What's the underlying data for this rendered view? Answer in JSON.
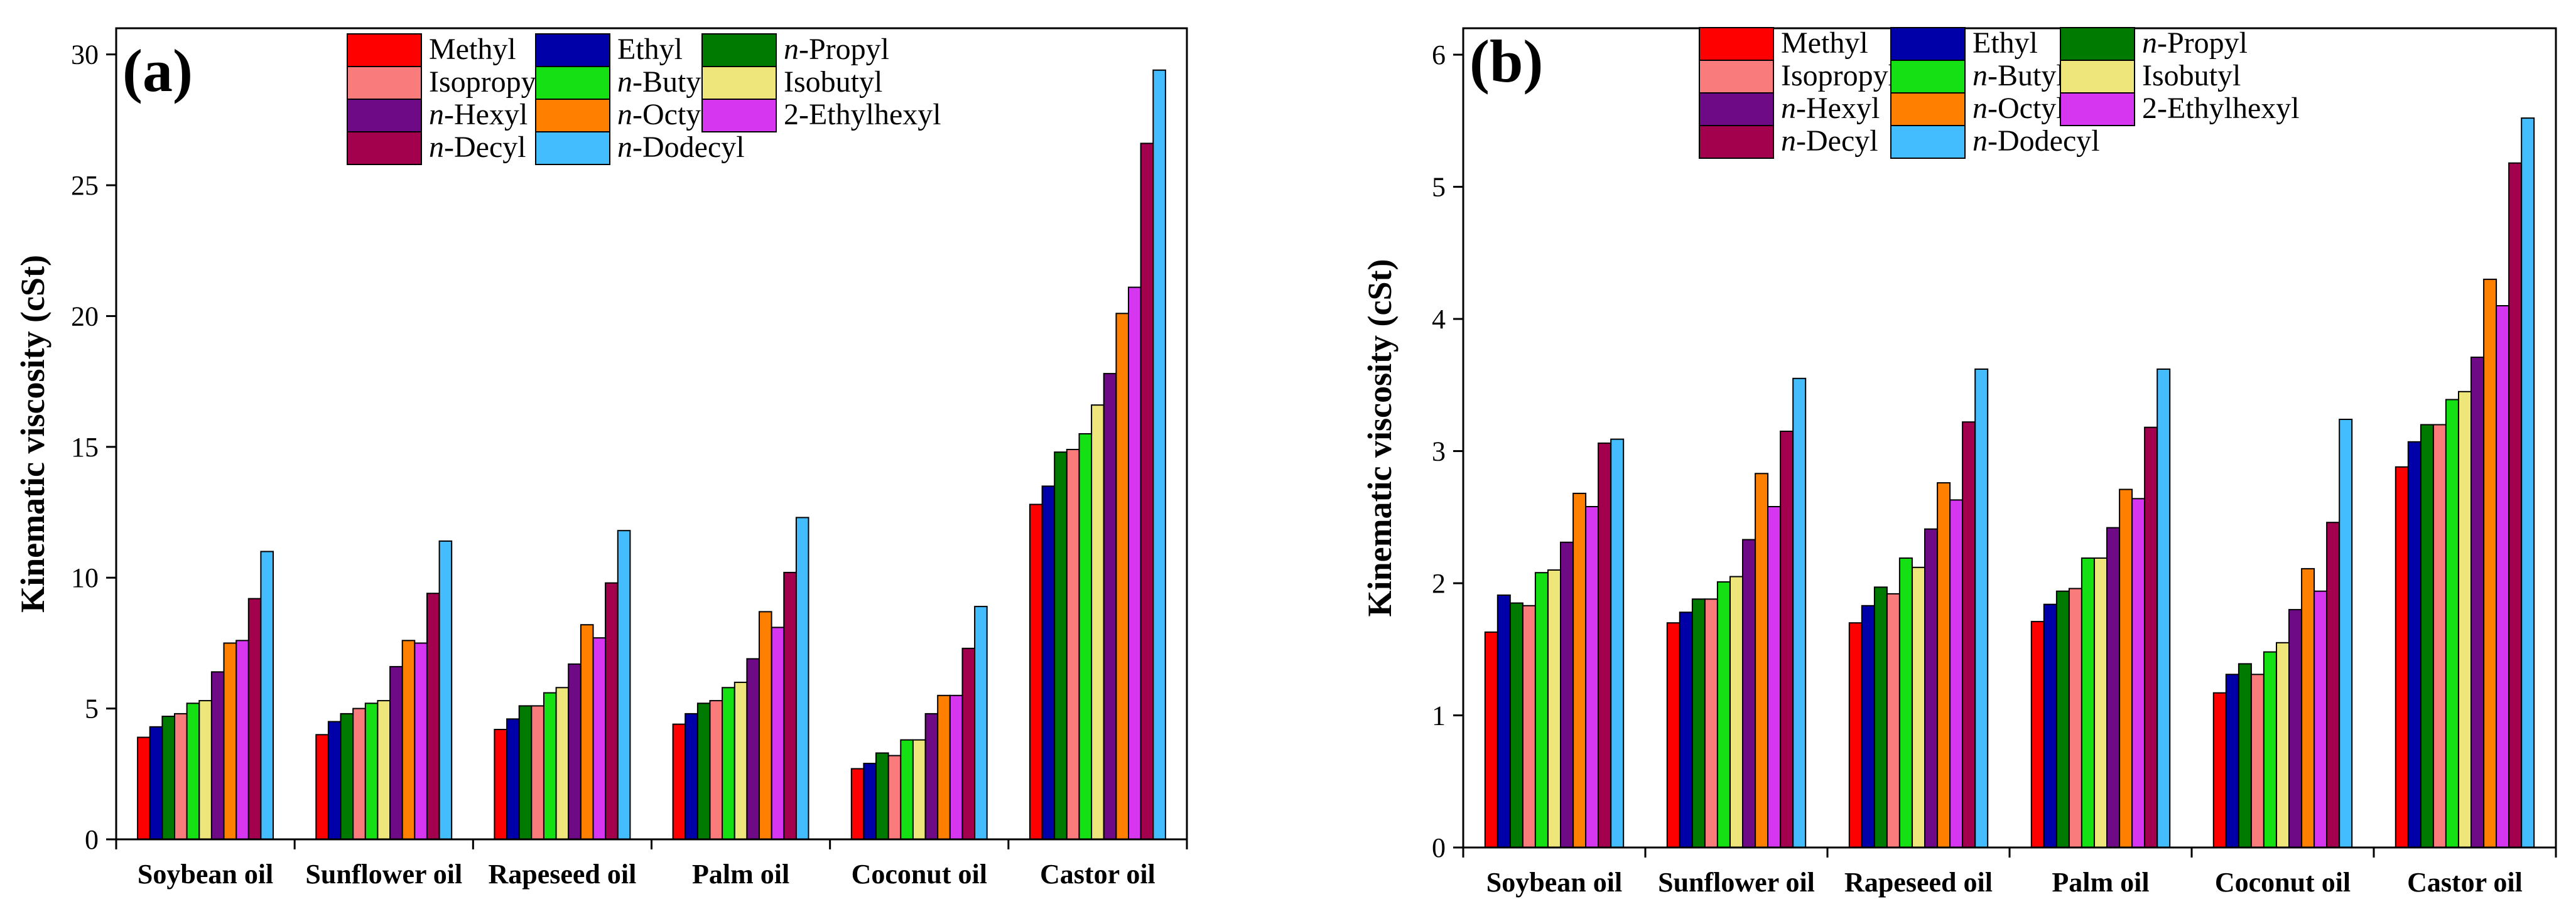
{
  "series": [
    {
      "key": "methyl",
      "prefix": "",
      "name": "Methyl",
      "color": "#ff0000"
    },
    {
      "key": "ethyl",
      "prefix": "",
      "name": "Ethyl",
      "color": "#0000a8"
    },
    {
      "key": "n-propyl",
      "prefix": "n",
      "name": "-Propyl",
      "color": "#007a00"
    },
    {
      "key": "isopropyl",
      "prefix": "",
      "name": "Isopropyl",
      "color": "#fa7b7b"
    },
    {
      "key": "n-butyl",
      "prefix": "n",
      "name": "-Butyl",
      "color": "#14e014"
    },
    {
      "key": "isobutyl",
      "prefix": "",
      "name": "Isobutyl",
      "color": "#eee67a"
    },
    {
      "key": "n-hexyl",
      "prefix": "n",
      "name": "-Hexyl",
      "color": "#6e0a86"
    },
    {
      "key": "n-octyl",
      "prefix": "n",
      "name": "-Octyl",
      "color": "#ff8000"
    },
    {
      "key": "2-ethylhexyl",
      "prefix": "",
      "name": "2-Ethylhexyl",
      "color": "#d636f0"
    },
    {
      "key": "n-decyl",
      "prefix": "n",
      "name": "-Decyl",
      "color": "#a3004d"
    },
    {
      "key": "n-dodecyl",
      "prefix": "n",
      "name": "-Dodecyl",
      "color": "#44bdff"
    }
  ],
  "chart_data": [
    {
      "type": "bar",
      "panel_label": "(a)",
      "ylabel": "Kinematic viscosity (cSt)",
      "xlabel": "",
      "ylim": [
        0,
        31
      ],
      "yticks": [
        0,
        5,
        10,
        15,
        20,
        25,
        30
      ],
      "legend_location": "top-center",
      "categories": [
        "Soybean oil",
        "Sunflower oil",
        "Rapeseed oil",
        "Palm oil",
        "Coconut oil",
        "Castor oil"
      ],
      "series": [
        {
          "name": "Methyl",
          "values": [
            3.9,
            4.0,
            4.2,
            4.4,
            2.7,
            12.8
          ]
        },
        {
          "name": "Ethyl",
          "values": [
            4.3,
            4.5,
            4.6,
            4.8,
            2.9,
            13.5
          ]
        },
        {
          "name": "n-Propyl",
          "values": [
            4.7,
            4.8,
            5.1,
            5.2,
            3.3,
            14.8
          ]
        },
        {
          "name": "Isopropyl",
          "values": [
            4.8,
            5.0,
            5.1,
            5.3,
            3.2,
            14.9
          ]
        },
        {
          "name": "n-Butyl",
          "values": [
            5.2,
            5.2,
            5.6,
            5.8,
            3.8,
            15.5
          ]
        },
        {
          "name": "Isobutyl",
          "values": [
            5.3,
            5.3,
            5.8,
            6.0,
            3.8,
            16.6
          ]
        },
        {
          "name": "n-Hexyl",
          "values": [
            6.4,
            6.6,
            6.7,
            6.9,
            4.8,
            17.8
          ]
        },
        {
          "name": "n-Octyl",
          "values": [
            7.5,
            7.6,
            8.2,
            8.7,
            5.5,
            20.1
          ]
        },
        {
          "name": "2-Ethylhexyl",
          "values": [
            7.6,
            7.5,
            7.7,
            8.1,
            5.5,
            21.1
          ]
        },
        {
          "name": "n-Decyl",
          "values": [
            9.2,
            9.4,
            9.8,
            10.2,
            7.3,
            26.6
          ]
        },
        {
          "name": "n-Dodecyl",
          "values": [
            11.0,
            11.4,
            11.8,
            12.3,
            8.9,
            29.4
          ]
        }
      ]
    },
    {
      "type": "bar",
      "panel_label": "(b)",
      "ylabel": "Kinematic viscosity (cSt)",
      "xlabel": "",
      "ylim": [
        0,
        6.2
      ],
      "yticks": [
        0,
        1,
        2,
        3,
        4,
        5,
        6
      ],
      "legend_location": "top-center",
      "categories": [
        "Soybean oil",
        "Sunflower oil",
        "Rapeseed oil",
        "Palm oil",
        "Coconut oil",
        "Castor oil"
      ],
      "series": [
        {
          "name": "Methyl",
          "values": [
            1.63,
            1.7,
            1.7,
            1.71,
            1.17,
            2.88
          ]
        },
        {
          "name": "Ethyl",
          "values": [
            1.91,
            1.78,
            1.83,
            1.84,
            1.31,
            3.07
          ]
        },
        {
          "name": "n-Propyl",
          "values": [
            1.85,
            1.88,
            1.97,
            1.94,
            1.39,
            3.2
          ]
        },
        {
          "name": "Isopropyl",
          "values": [
            1.83,
            1.88,
            1.92,
            1.96,
            1.31,
            3.2
          ]
        },
        {
          "name": "n-Butyl",
          "values": [
            2.08,
            2.01,
            2.19,
            2.19,
            1.48,
            3.39
          ]
        },
        {
          "name": "Isobutyl",
          "values": [
            2.1,
            2.05,
            2.12,
            2.19,
            1.55,
            3.45
          ]
        },
        {
          "name": "n-Hexyl",
          "values": [
            2.31,
            2.33,
            2.41,
            2.42,
            1.8,
            3.71
          ]
        },
        {
          "name": "n-Octyl",
          "values": [
            2.68,
            2.83,
            2.76,
            2.71,
            2.11,
            4.3
          ]
        },
        {
          "name": "2-Ethylhexyl",
          "values": [
            2.58,
            2.58,
            2.63,
            2.64,
            1.94,
            4.1
          ]
        },
        {
          "name": "n-Decyl",
          "values": [
            3.06,
            3.15,
            3.22,
            3.18,
            2.46,
            5.18
          ]
        },
        {
          "name": "n-Dodecyl",
          "values": [
            3.09,
            3.55,
            3.62,
            3.62,
            3.24,
            5.52
          ]
        }
      ]
    }
  ]
}
